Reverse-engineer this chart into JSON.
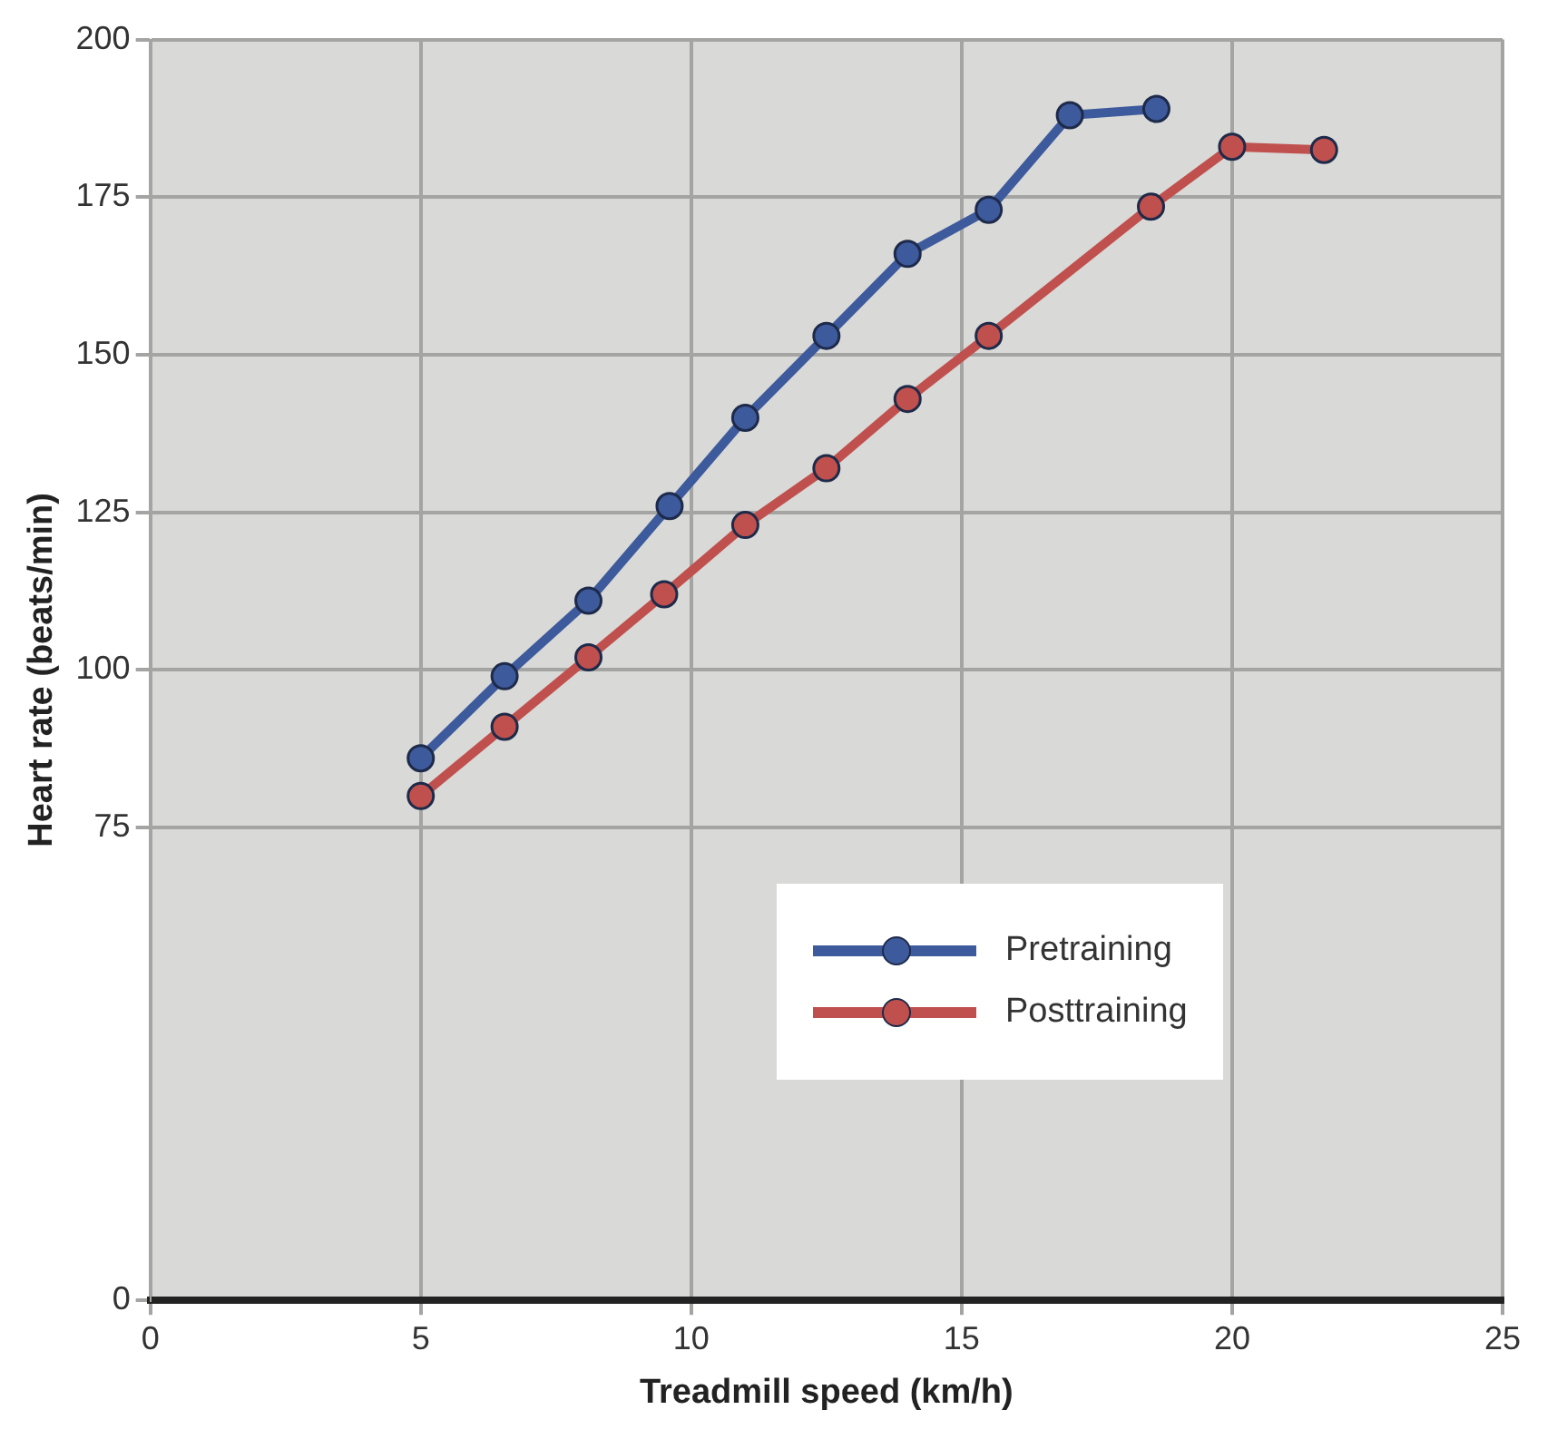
{
  "chart_data": {
    "type": "line",
    "xlabel": "Treadmill speed (km/h)",
    "ylabel": "Heart rate (beats/min)",
    "xlim": [
      0,
      25
    ],
    "xticks": [
      0,
      5,
      10,
      15,
      20,
      25
    ],
    "ylim": [
      0,
      200
    ],
    "yticks": [
      0,
      75,
      100,
      125,
      150,
      175,
      200
    ],
    "grid": true,
    "legend": "bottom right",
    "marker": "circle",
    "line_style": "solid",
    "series": [
      {
        "name": "Pretraining",
        "color": "#3d5a9c",
        "x": [
          5.0,
          6.55,
          8.1,
          9.6,
          11.0,
          12.5,
          14.0,
          15.5,
          17.0,
          18.6
        ],
        "values": [
          86,
          99,
          111,
          126,
          140,
          153,
          166,
          173,
          188,
          189
        ]
      },
      {
        "name": "Posttraining",
        "color": "#c0504d",
        "x": [
          5.0,
          6.55,
          8.1,
          9.5,
          11.0,
          12.5,
          14.0,
          15.5,
          18.5,
          20.0,
          21.7
        ],
        "values": [
          80,
          91,
          102,
          112,
          123,
          132,
          143,
          153,
          173.5,
          183,
          182.5
        ]
      }
    ]
  }
}
